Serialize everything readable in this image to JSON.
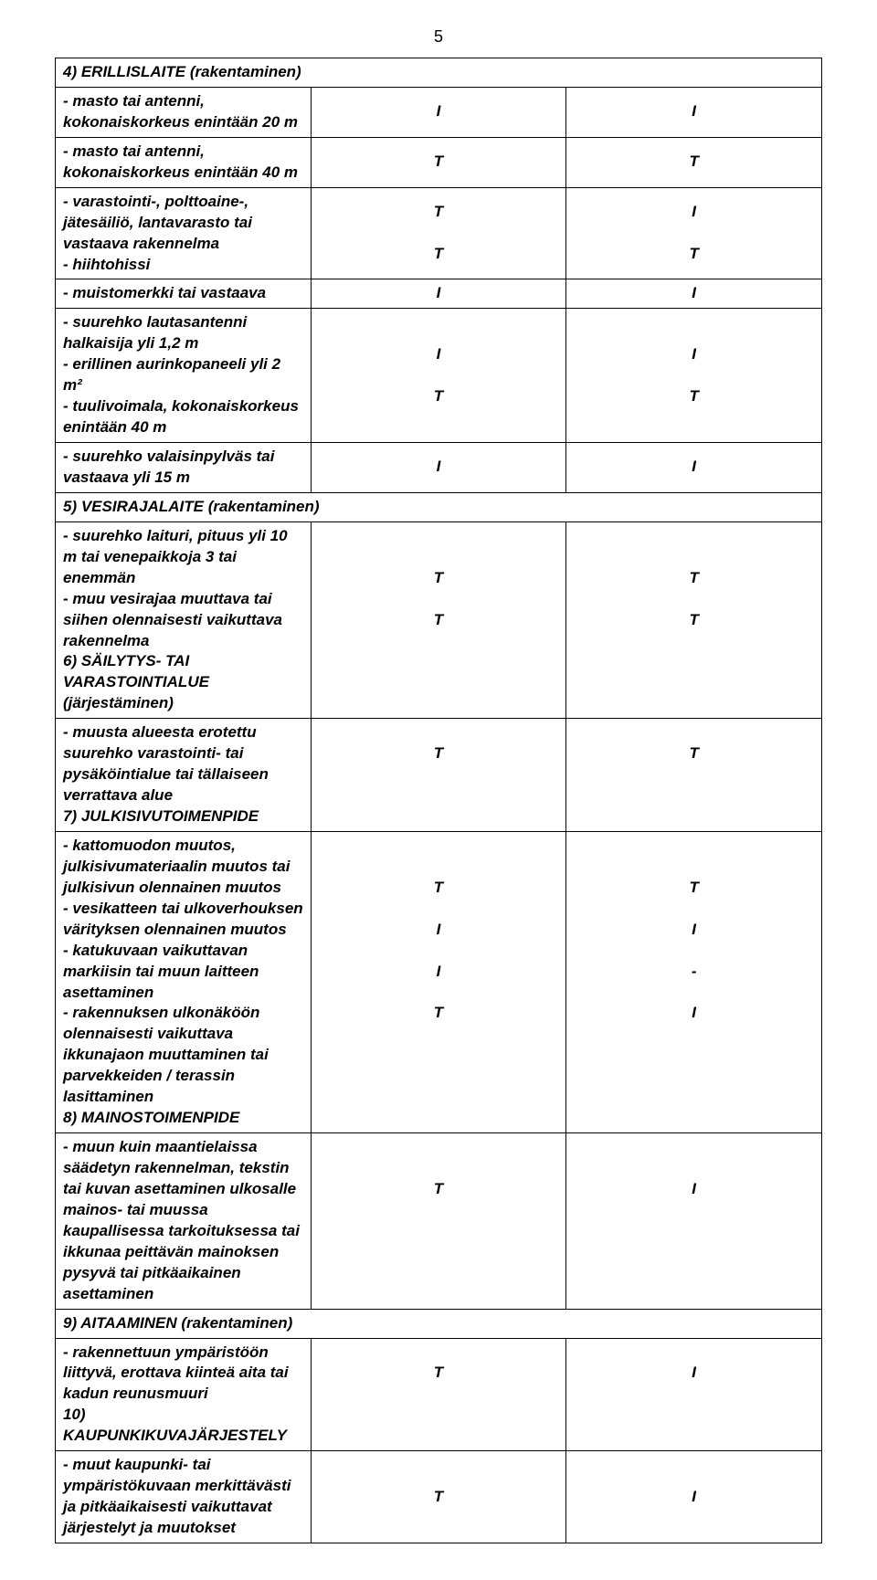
{
  "page_number": "5",
  "rows": [
    {
      "type": "section",
      "text": "4) ERILLISLAITE (rakentaminen)"
    },
    {
      "type": "item",
      "text": "- masto tai antenni, kokonaiskorkeus enintään 20 m",
      "c1": "I",
      "c2": "I"
    },
    {
      "type": "item",
      "text": "- masto tai antenni, kokonaiskorkeus  enintään  40 m",
      "c1": "T",
      "c2": "T"
    },
    {
      "type": "multi",
      "lines": [
        {
          "t": "- varastointi-, polttoaine-, jätesäiliö, lantavarasto tai vastaava rakennelma",
          "c1": "T",
          "c2": "I"
        },
        {
          "t": "- hiihtohissi",
          "c1": "T",
          "c2": "T"
        }
      ]
    },
    {
      "type": "item",
      "text": "- muistomerkki tai vastaava",
      "c1": "I",
      "c2": "I"
    },
    {
      "type": "multi",
      "lines": [
        {
          "t": "- suurehko lautasantenni halkaisija yli 1,2 m",
          "c1": "I",
          "c2": "I"
        },
        {
          "t": "- erillinen  aurinkopaneeli yli 2 m²",
          "c1": "",
          "c2": ""
        },
        {
          "t": "- tuulivoimala, kokonaiskorkeus  enintään 40 m",
          "c1": "T",
          "c2": "T"
        }
      ]
    },
    {
      "type": "item",
      "text": "- suurehko valaisinpylväs tai vastaava yli 15 m",
      "c1": "I",
      "c2": "I"
    },
    {
      "type": "section",
      "text": "5) VESIRAJALAITE (rakentaminen)"
    },
    {
      "type": "multi",
      "lines": [
        {
          "t": "- suurehko laituri, pituus yli 10 m tai venepaikkoja 3 tai enemmän",
          "c1": "T",
          "c2": "T"
        },
        {
          "t": "- muu vesirajaa muuttava tai siihen olennaisesti vaikuttava rakennelma",
          "c1": "T",
          "c2": "T"
        },
        {
          "t": "6) SÄILYTYS- TAI VARASTOINTIALUE (järjestäminen)",
          "c1": "",
          "c2": "",
          "noitalic": false
        }
      ]
    },
    {
      "type": "multi",
      "lines": [
        {
          "t": "- muusta alueesta erotettu suurehko varastointi- tai pysäköintialue tai tällaiseen verrattava alue",
          "c1": "T",
          "c2": "T"
        },
        {
          "t": "7) JULKISIVUTOIMENPIDE",
          "c1": "",
          "c2": ""
        }
      ]
    },
    {
      "type": "multi",
      "lines": [
        {
          "t": "- kattomuodon muutos, julkisivumateriaalin muutos tai julkisivun olennainen muutos",
          "c1": "T",
          "c2": "T"
        },
        {
          "t": "- vesikatteen tai ulkoverhouksen värityksen olennainen muutos",
          "c1": "I",
          "c2": "I"
        },
        {
          "t": "- katukuvaan vaikuttavan markiisin tai muun laitteen asettaminen",
          "c1": "I",
          "c2": "-"
        },
        {
          "t": "- rakennuksen ulkonäköön olennaisesti vaikuttava ikkunajaon muuttaminen tai parvekkeiden / terassin lasittaminen",
          "c1": "T",
          "c2": "I"
        },
        {
          "t": "8) MAINOSTOIMENPIDE",
          "c1": "",
          "c2": ""
        }
      ]
    },
    {
      "type": "multi",
      "lines": [
        {
          "t": "- muun kuin maantielaissa säädetyn rakennelman, tekstin tai kuvan asettaminen ulkosalle mainos- tai muussa kaupallisessa tarkoituksessa tai ikkunaa peittävän mainoksen pysyvä tai pitkäaikainen asettaminen",
          "c1": "T",
          "c2": "I"
        }
      ]
    },
    {
      "type": "section",
      "text": "9) AITAAMINEN (rakentaminen)"
    },
    {
      "type": "multi",
      "lines": [
        {
          "t": "- rakennettuun ympäristöön liittyvä, erottava kiinteä aita tai kadun reunusmuuri",
          "c1": "T",
          "c2": "I"
        },
        {
          "t": "10) KAUPUNKIKUVAJÄRJESTELY",
          "c1": "",
          "c2": ""
        }
      ]
    },
    {
      "type": "item",
      "text": "- muut kaupunki- tai ympäristökuvaan merkittävästi ja pitkäaikaisesti vaikuttavat järjestelyt ja muutokset",
      "c1": "T",
      "c2": "I"
    }
  ]
}
